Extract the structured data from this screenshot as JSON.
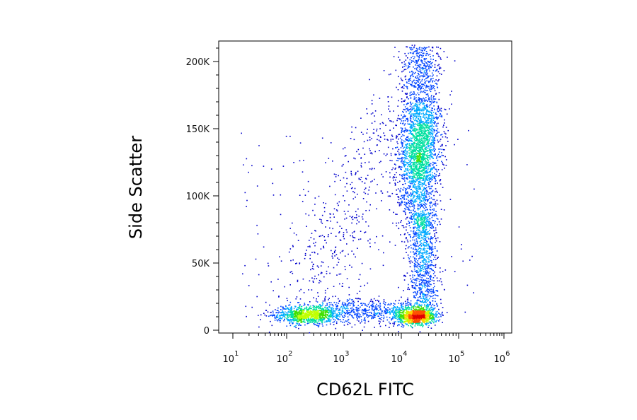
{
  "chart_data": {
    "type": "scatter",
    "xlabel": "CD62L FITC",
    "ylabel": "Side Scatter",
    "x_scale": "log",
    "xlim": [
      10,
      1000000
    ],
    "ylim": [
      -3000,
      217000
    ],
    "x_ticks": [
      {
        "base": "10",
        "exp": "1",
        "value": 10
      },
      {
        "base": "10",
        "exp": "2",
        "value": 100
      },
      {
        "base": "10",
        "exp": "3",
        "value": 1000
      },
      {
        "base": "10",
        "exp": "4",
        "value": 10000
      },
      {
        "base": "10",
        "exp": "5",
        "value": 100000
      },
      {
        "base": "10",
        "exp": "6",
        "value": 1000000
      }
    ],
    "y_ticks": [
      {
        "label": "0",
        "value": 0
      },
      {
        "label": "50K",
        "value": 50000
      },
      {
        "label": "100K",
        "value": 100000
      },
      {
        "label": "150K",
        "value": 150000
      },
      {
        "label": "200K",
        "value": 200000
      }
    ],
    "grid": false,
    "density_colormap": [
      "#0000cc",
      "#0044ff",
      "#00aaff",
      "#00e0a0",
      "#40e000",
      "#c0ff00",
      "#ffd000",
      "#ff5000",
      "#e00000"
    ],
    "populations": [
      {
        "name_hint": "low",
        "x_center": 250,
        "y_center": 12000,
        "n": 900
      },
      {
        "name_hint": "high-ssc",
        "x_center": 25000,
        "y_center": 135000,
        "n": 2200
      },
      {
        "name_hint": "high-lowssc",
        "x_center": 21000,
        "y_center": 10000,
        "n": 1000
      }
    ]
  }
}
